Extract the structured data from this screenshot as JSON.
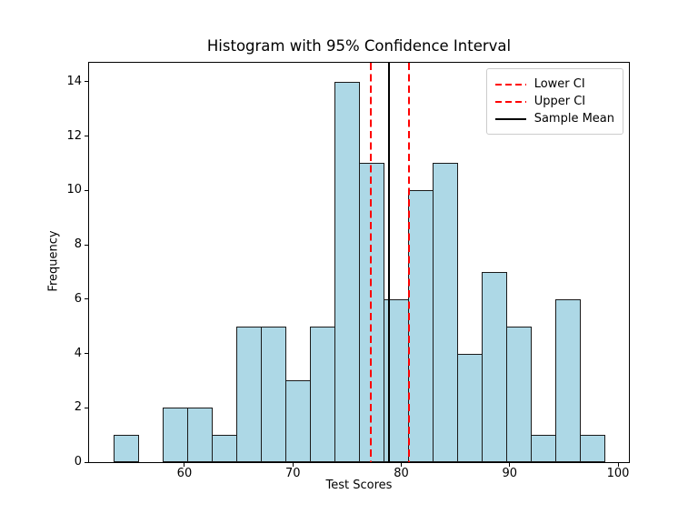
{
  "figure_title": "Histogram with 95% Confidence Interval",
  "chart_data": {
    "type": "bar",
    "subtype": "histogram",
    "title": "Histogram with 95% Confidence Interval",
    "xlabel": "Test Scores",
    "ylabel": "Frequency",
    "n_total": 100,
    "bins": {
      "start": 53.5,
      "width": 2.26,
      "count": 20
    },
    "bin_edges_approx": [
      53.5,
      55.8,
      58.0,
      60.3,
      62.5,
      64.8,
      67.1,
      69.3,
      71.6,
      73.8,
      76.1,
      78.4,
      80.6,
      82.9,
      85.1,
      87.4,
      89.7,
      91.9,
      94.2,
      96.4,
      98.7
    ],
    "frequencies": [
      1,
      0,
      2,
      2,
      1,
      5,
      5,
      3,
      5,
      14,
      11,
      6,
      10,
      11,
      4,
      7,
      5,
      1,
      6,
      1
    ],
    "xlim": [
      51.2,
      101.0
    ],
    "ylim": [
      0,
      14.7
    ],
    "xticks": [
      60,
      70,
      80,
      90,
      100
    ],
    "yticks": [
      0,
      2,
      4,
      6,
      8,
      10,
      12,
      14
    ],
    "grid": false,
    "bar_style": {
      "fill": "#add8e6",
      "edge": "#1a1a1a"
    },
    "vlines": [
      {
        "label": "Lower CI",
        "x": 77.2,
        "color": "#ff0000",
        "linestyle": "dashed",
        "linewidth": 2
      },
      {
        "label": "Upper CI",
        "x": 80.7,
        "color": "#ff0000",
        "linestyle": "dashed",
        "linewidth": 2
      },
      {
        "label": "Sample Mean",
        "x": 78.9,
        "color": "#000000",
        "linestyle": "solid",
        "linewidth": 2
      }
    ],
    "legend": {
      "position": "upper-right",
      "entries": [
        {
          "label": "Lower CI",
          "color": "#ff0000",
          "linestyle": "dashed"
        },
        {
          "label": "Upper CI",
          "color": "#ff0000",
          "linestyle": "dashed"
        },
        {
          "label": "Sample Mean",
          "color": "#000000",
          "linestyle": "solid"
        }
      ]
    }
  }
}
